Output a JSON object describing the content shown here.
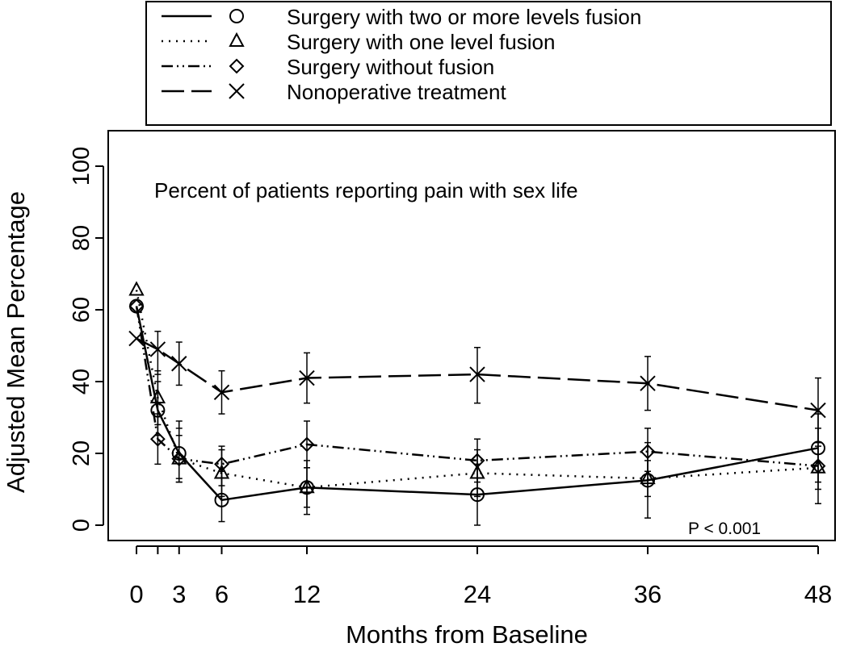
{
  "chart_data": {
    "type": "line",
    "title": "",
    "annotation": "Percent of patients reporting pain with sex life",
    "p_value": "P < 0.001",
    "xlabel": "Months from Baseline",
    "ylabel": "Adjusted Mean Percentage",
    "xlim": [
      -1,
      48.5
    ],
    "ylim": [
      0,
      110
    ],
    "x_ticks": [
      0,
      1.5,
      3,
      6,
      12,
      24,
      36,
      48
    ],
    "x_tick_labels": [
      "0",
      "",
      "3",
      "6",
      "12",
      "24",
      "36",
      "48"
    ],
    "y_ticks": [
      0,
      20,
      40,
      60,
      80,
      100
    ],
    "y_tick_labels": [
      "0",
      "20",
      "40",
      "60",
      "80",
      "100"
    ],
    "grid": false,
    "legend_position": "top",
    "series": [
      {
        "name": "Surgery with two or more levels fusion",
        "marker": "circle",
        "line_style": "solid",
        "x": [
          0,
          1.5,
          3,
          6,
          12,
          24,
          36,
          48
        ],
        "y": [
          61,
          32,
          20,
          7,
          10.5,
          8.5,
          12.5,
          21.5
        ],
        "err_lo": [
          null,
          25,
          13,
          1,
          3,
          0,
          2,
          12
        ],
        "err_hi": [
          null,
          40,
          27,
          15,
          18,
          17,
          23,
          31
        ]
      },
      {
        "name": "Surgery with one level fusion",
        "marker": "triangle",
        "line_style": "dotted",
        "x": [
          0,
          1.5,
          3,
          6,
          12,
          24,
          36,
          48
        ],
        "y": [
          65.5,
          35.5,
          18.5,
          14.5,
          10.5,
          14.5,
          13,
          16
        ],
        "err_lo": [
          null,
          28,
          12,
          8,
          5,
          8,
          8,
          10
        ],
        "err_hi": [
          null,
          43,
          25,
          21,
          16,
          21,
          18,
          22
        ]
      },
      {
        "name": "Surgery without fusion",
        "marker": "diamond",
        "line_style": "dash-dot-dot",
        "x": [
          0,
          1.5,
          3,
          6,
          12,
          24,
          36,
          48
        ],
        "y": [
          61,
          24,
          18.5,
          17,
          22.5,
          18,
          20.5,
          16.5
        ],
        "err_lo": [
          null,
          17,
          12,
          11,
          16,
          12,
          15,
          6
        ],
        "err_hi": [
          null,
          31,
          29,
          22,
          29,
          24,
          27,
          27
        ]
      },
      {
        "name": "Nonoperative treatment",
        "marker": "x",
        "line_style": "long-dash",
        "x": [
          0,
          1.5,
          3,
          6,
          12,
          24,
          36,
          48
        ],
        "y": [
          52,
          49,
          45,
          37,
          41,
          42,
          39.5,
          32
        ],
        "err_lo": [
          null,
          42,
          39,
          31,
          34,
          34,
          32,
          23
        ],
        "err_hi": [
          null,
          54,
          51,
          43,
          48,
          49.5,
          47,
          41
        ]
      }
    ]
  }
}
